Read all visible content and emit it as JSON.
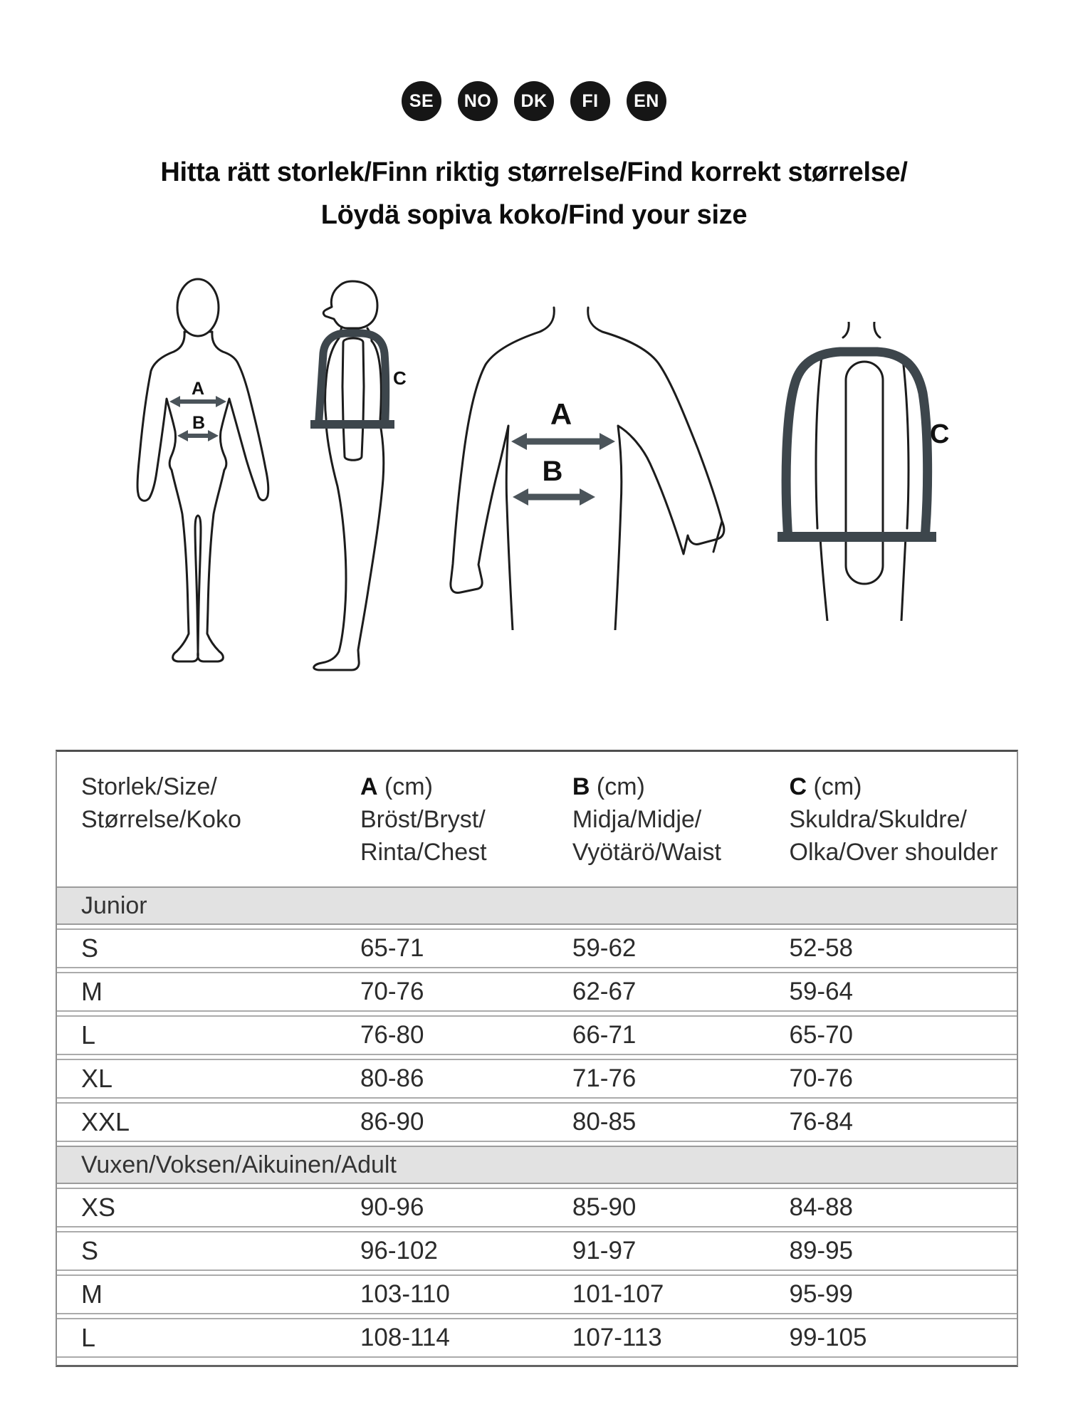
{
  "languages": [
    "SE",
    "NO",
    "DK",
    "FI",
    "EN"
  ],
  "title": {
    "line1": "Hitta rätt storlek/Finn riktig størrelse/Find korrekt størrelse/",
    "line2": "Löydä sopiva koko/Find your size"
  },
  "figures": {
    "labels": {
      "a": "A",
      "b": "B",
      "c": "C"
    },
    "colors": {
      "outline": "#1c1c1c",
      "arrow": "#4b545a",
      "vest": "#3d464c"
    }
  },
  "table": {
    "columns": [
      {
        "line1": "Storlek/Size/",
        "line2": "Størrelse/Koko"
      },
      {
        "letter": "A",
        "unit": "(cm)",
        "line1": "Bröst/Bryst/",
        "line2": "Rinta/Chest"
      },
      {
        "letter": "B",
        "unit": "(cm)",
        "line1": "Midja/Midje/",
        "line2": "Vyötärö/Waist"
      },
      {
        "letter": "C",
        "unit": "(cm)",
        "line1": "Skuldra/Skuldre/",
        "line2": "Olka/Over shoulder"
      }
    ],
    "sections": [
      {
        "label": "Junior",
        "rows": [
          {
            "size": "S",
            "a": "65-71",
            "b": "59-62",
            "c": "52-58"
          },
          {
            "size": "M",
            "a": "70-76",
            "b": "62-67",
            "c": "59-64"
          },
          {
            "size": "L",
            "a": "76-80",
            "b": "66-71",
            "c": "65-70"
          },
          {
            "size": "XL",
            "a": "80-86",
            "b": "71-76",
            "c": "70-76"
          },
          {
            "size": "XXL",
            "a": "86-90",
            "b": "80-85",
            "c": "76-84"
          }
        ]
      },
      {
        "label": "Vuxen/Voksen/Aikuinen/Adult",
        "rows": [
          {
            "size": "XS",
            "a": "90-96",
            "b": "85-90",
            "c": "84-88"
          },
          {
            "size": "S",
            "a": "96-102",
            "b": "91-97",
            "c": "89-95"
          },
          {
            "size": "M",
            "a": "103-110",
            "b": "101-107",
            "c": "95-99"
          },
          {
            "size": "L",
            "a": "108-114",
            "b": "107-113",
            "c": "99-105"
          }
        ]
      }
    ]
  }
}
